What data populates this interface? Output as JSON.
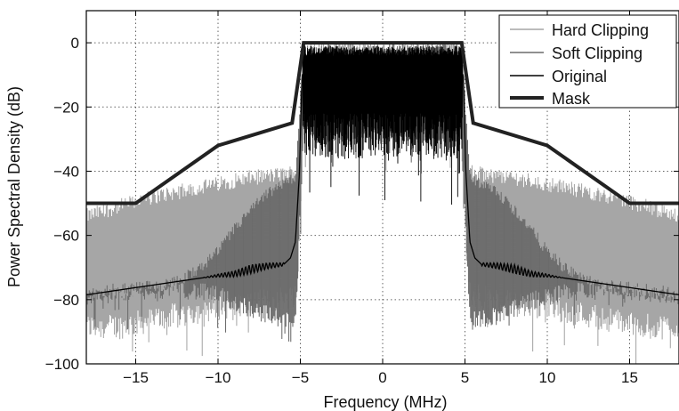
{
  "chart_data": {
    "type": "line",
    "xlabel": "Frequency (MHz)",
    "ylabel": "Power Spectral Density (dB)",
    "xlim": [
      -18,
      18
    ],
    "ylim": [
      -100,
      10
    ],
    "x_ticks": [
      -15,
      -10,
      -5,
      0,
      5,
      10,
      15
    ],
    "y_ticks": [
      0,
      -20,
      -40,
      -60,
      -80,
      -100
    ],
    "x_tick_labels": [
      "−15",
      "−10",
      "−5",
      "0",
      "5",
      "10",
      "15"
    ],
    "y_tick_labels": [
      "0",
      "−20",
      "−40",
      "−60",
      "−80",
      "−100"
    ],
    "grid": true,
    "legend_position": "top-right",
    "series": [
      {
        "name": "Hard Clipping",
        "color": "#a6a6a6",
        "style": "noisy band",
        "x": [
          -18,
          -16,
          -14,
          -12,
          -10,
          -8,
          -6,
          -5.2,
          -4.8,
          4.8,
          5.2,
          6,
          8,
          10,
          12,
          14,
          16,
          18
        ],
        "y_upper": [
          -54,
          -51,
          -48,
          -46,
          -44,
          -42,
          -41,
          -40,
          -2,
          -2,
          -40,
          -41,
          -42,
          -44,
          -46,
          -48,
          -51,
          -54
        ],
        "y_lower": [
          -90,
          -90,
          -88,
          -86,
          -84,
          -83,
          -81,
          -80,
          -28,
          -28,
          -80,
          -81,
          -83,
          -84,
          -86,
          -88,
          -90,
          -90
        ]
      },
      {
        "name": "Soft Clipping",
        "color": "#6b6b6b",
        "style": "noisy band",
        "x": [
          -18,
          -16,
          -14,
          -12,
          -11,
          -10,
          -9,
          -8,
          -7,
          -6,
          -5.3,
          -4.8,
          4.8,
          5.3,
          6,
          7,
          8,
          9,
          10,
          11,
          12,
          14,
          16,
          18
        ],
        "y_upper": [
          -79,
          -78,
          -77,
          -73,
          -70,
          -65,
          -58,
          -52,
          -47,
          -44,
          -42,
          -2,
          -2,
          -42,
          -44,
          -47,
          -52,
          -58,
          -65,
          -70,
          -73,
          -77,
          -78,
          -79
        ],
        "y_lower": [
          -80,
          -79,
          -78,
          -78,
          -79,
          -80,
          -82,
          -84,
          -86,
          -87,
          -88,
          -30,
          -30,
          -88,
          -87,
          -86,
          -84,
          -82,
          -80,
          -79,
          -78,
          -78,
          -79,
          -80
        ]
      },
      {
        "name": "Original",
        "color": "#000000",
        "style": "line",
        "x": [
          -18,
          -16,
          -14,
          -12,
          -10,
          -9,
          -8,
          -7,
          -6,
          -5.6,
          -5.3,
          -5.05,
          -4.9,
          4.9,
          5.05,
          5.3,
          5.6,
          6,
          7,
          8,
          9,
          10,
          12,
          14,
          16,
          18
        ],
        "y": [
          -78.5,
          -77,
          -75.5,
          -74,
          -72.5,
          -72,
          -70.5,
          -69.5,
          -69,
          -67,
          -62,
          -40,
          -10,
          -10,
          -40,
          -62,
          -67,
          -69,
          -69.5,
          -70.5,
          -72,
          -72.5,
          -74,
          -75.5,
          -77,
          -78.5
        ]
      },
      {
        "name": "Mask",
        "color": "#222222",
        "style": "thick line",
        "x": [
          -18,
          -15,
          -10,
          -5.5,
          -4.8,
          4.8,
          5.5,
          10,
          15,
          18
        ],
        "y": [
          -50,
          -50,
          -32,
          -25,
          0,
          0,
          -25,
          -32,
          -50,
          -50
        ]
      }
    ]
  }
}
